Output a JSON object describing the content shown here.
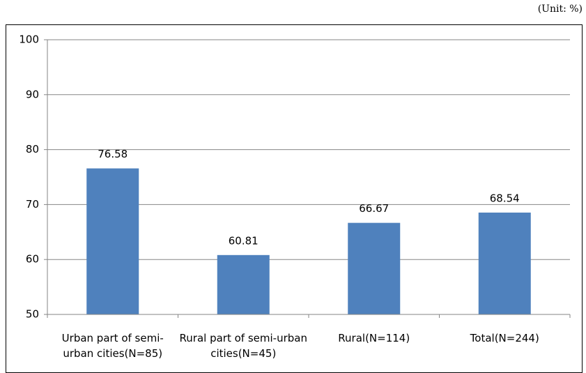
{
  "chart_data": {
    "type": "bar",
    "subtitle": "(Unit: %)",
    "categories": [
      "Urban part of semi-urban cities(N=85)",
      "Rural part of semi-urban cities(N=45)",
      "Rural(N=114)",
      "Total(N=244)"
    ],
    "values": [
      76.58,
      60.81,
      66.67,
      68.54
    ],
    "color": "#4f81bd",
    "ylim": [
      50,
      100
    ],
    "yticks": [
      50,
      60,
      70,
      80,
      90,
      100
    ],
    "grid": true
  }
}
